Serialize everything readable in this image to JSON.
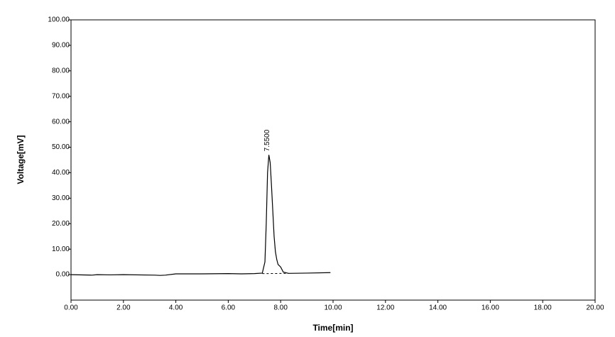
{
  "chart_data": {
    "type": "line",
    "x_label": "Time[min]",
    "y_label": "Voltage[mV]",
    "x": [
      0,
      0.8,
      1,
      1.5,
      2,
      3.2,
      3.4,
      3.6,
      4,
      5,
      6,
      6.5,
      7,
      7.3,
      7.4,
      7.45,
      7.5,
      7.55,
      7.6,
      7.65,
      7.7,
      7.75,
      7.8,
      7.85,
      7.9,
      8.0,
      8.1,
      8.3,
      9,
      9.9
    ],
    "values": [
      0,
      -0.2,
      0,
      -0.1,
      0,
      -0.2,
      -0.3,
      -0.2,
      0.3,
      0.3,
      0.4,
      0.3,
      0.4,
      0.6,
      5,
      20,
      40,
      47,
      44,
      35,
      25,
      15,
      9,
      6,
      4,
      3,
      1,
      0.5,
      0.6,
      0.8
    ],
    "color": "#000000",
    "baseline": {
      "x": [
        7.3,
        8.3
      ],
      "values": [
        0.4,
        0.5
      ]
    },
    "annotation": {
      "text": "7.5500",
      "x": 7.55,
      "y": 47
    },
    "xlim": [
      0,
      20
    ],
    "ylim": [
      -10,
      100
    ],
    "xticks": [
      {
        "value": 0,
        "label": "0.00"
      },
      {
        "value": 2,
        "label": "2.00"
      },
      {
        "value": 4,
        "label": "4.00"
      },
      {
        "value": 6,
        "label": "6.00"
      },
      {
        "value": 8,
        "label": "8.00"
      },
      {
        "value": 10,
        "label": "10.00"
      },
      {
        "value": 12,
        "label": "12.00"
      },
      {
        "value": 14,
        "label": "14.00"
      },
      {
        "value": 16,
        "label": "16.00"
      },
      {
        "value": 18,
        "label": "18.00"
      },
      {
        "value": 20,
        "label": "20.00"
      }
    ],
    "yticks": [
      {
        "value": 0,
        "label": "0.00"
      },
      {
        "value": 10,
        "label": "10.00"
      },
      {
        "value": 20,
        "label": "20.00"
      },
      {
        "value": 30,
        "label": "30.00"
      },
      {
        "value": 40,
        "label": "40.00"
      },
      {
        "value": 50,
        "label": "50.00"
      },
      {
        "value": 60,
        "label": "60.00"
      },
      {
        "value": 70,
        "label": "70.00"
      },
      {
        "value": 80,
        "label": "80.00"
      },
      {
        "value": 90,
        "label": "90.00"
      },
      {
        "value": 100,
        "label": "100.00"
      }
    ]
  }
}
